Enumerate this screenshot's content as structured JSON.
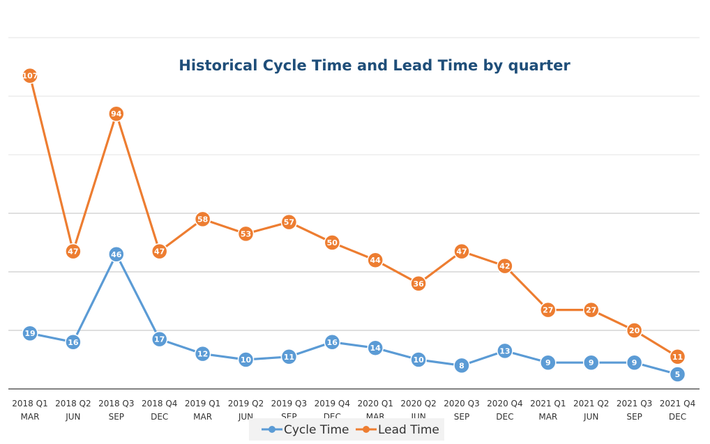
{
  "chart_data": {
    "type": "line",
    "title": "Historical Cycle Time and Lead Time by quarter",
    "xlabel": "",
    "ylabel": "",
    "categories": [
      [
        "2018 Q1",
        "MAR"
      ],
      [
        "2018 Q2",
        "JUN"
      ],
      [
        "2018 Q3",
        "SEP"
      ],
      [
        "2018 Q4",
        "DEC"
      ],
      [
        "2019 Q1",
        "MAR"
      ],
      [
        "2019 Q2",
        "JUN"
      ],
      [
        "2019 Q3",
        "SEP"
      ],
      [
        "2019 Q4",
        "DEC"
      ],
      [
        "2020 Q1",
        "MAR"
      ],
      [
        "2020 Q2",
        "JUN"
      ],
      [
        "2020 Q3",
        "SEP"
      ],
      [
        "2020 Q4",
        "DEC"
      ],
      [
        "2021 Q1",
        "MAR"
      ],
      [
        "2021 Q2",
        "JUN"
      ],
      [
        "2021 Q3",
        "SEP"
      ],
      [
        "2021 Q4",
        "DEC"
      ]
    ],
    "series": [
      {
        "name": "Cycle Time",
        "color": "#5b9bd5",
        "values": [
          19,
          16,
          46,
          17,
          12,
          10,
          11,
          16,
          14,
          10,
          8,
          13,
          9,
          9,
          9,
          5
        ]
      },
      {
        "name": "Lead Time",
        "color": "#ed7d31",
        "values": [
          107,
          47,
          94,
          47,
          58,
          53,
          57,
          50,
          44,
          36,
          47,
          42,
          27,
          27,
          20,
          11
        ]
      }
    ],
    "ylim": [
      0,
      120
    ],
    "y_gridlines": [
      0,
      20,
      40,
      60,
      80,
      100,
      120
    ],
    "y_tick_labels_shown": false,
    "grid": true,
    "data_labels": true,
    "legend_position": "bottom"
  }
}
